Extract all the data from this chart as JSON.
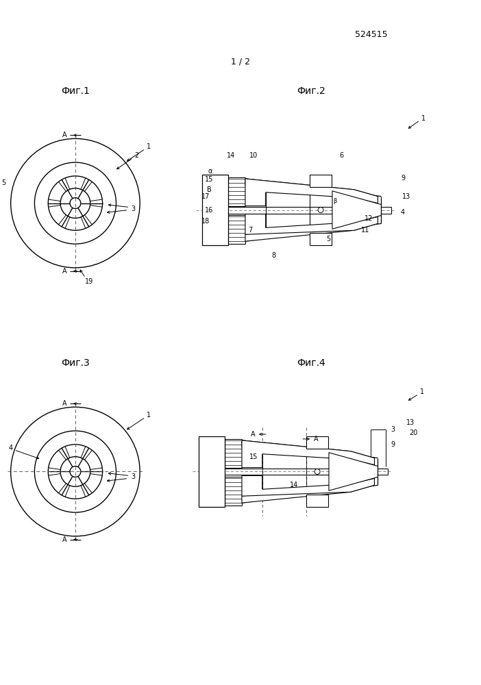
{
  "page_number": "524515",
  "page_indicator": "1 / 2",
  "background_color": "#ffffff",
  "fig1_title": "Фиг.1",
  "fig2_title": "Фиг.2",
  "fig3_title": "Фиг.3",
  "fig4_title": "Фиг.4"
}
